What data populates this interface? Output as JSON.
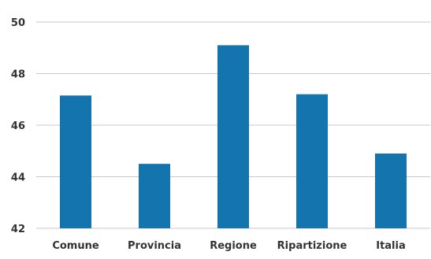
{
  "chart_data": {
    "type": "bar",
    "categories": [
      "Comune",
      "Provincia",
      "Regione",
      "Ripartizione",
      "Italia"
    ],
    "values": [
      47.15,
      44.5,
      49.1,
      47.2,
      44.9
    ],
    "ylim": [
      42,
      50
    ],
    "yticks": [
      42,
      44,
      46,
      48,
      50
    ],
    "grid": true,
    "legend": "none",
    "bar_color": "#1474ad",
    "grid_color": "#c8c8c8"
  }
}
